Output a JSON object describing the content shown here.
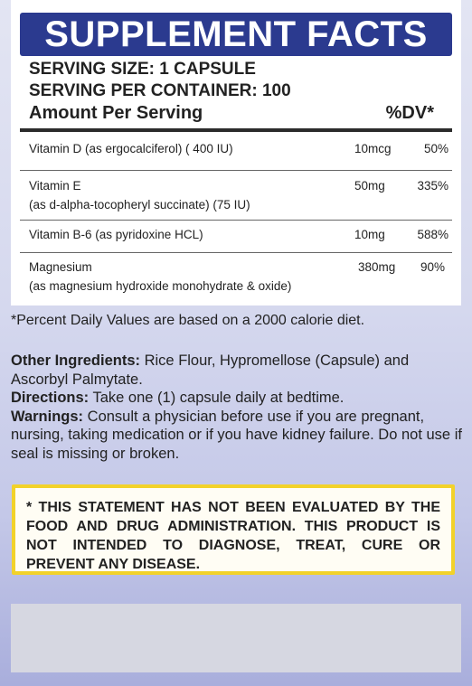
{
  "header": {
    "title": "SUPPLEMENT FACTS"
  },
  "serving": {
    "size": "SERVING SIZE: 1 CAPSULE",
    "per_container": "SERVING PER CONTAINER: 100"
  },
  "table": {
    "amount_label": "Amount Per Serving",
    "dv_label": "%DV*",
    "rows": [
      {
        "name": "Vitamin D (as ergocalciferol) ( 400 IU)",
        "sub": "",
        "amount": "10mcg",
        "dv": "50%"
      },
      {
        "name": "Vitamin E",
        "sub": "(as d-alpha-tocopheryl succinate) (75 IU)",
        "amount": "50mg",
        "dv": "335%"
      },
      {
        "name": "Vitamin B-6 (as pyridoxine HCL)",
        "sub": "",
        "amount": "10mg",
        "dv": "588%"
      },
      {
        "name": "Magnesium",
        "sub": "(as magnesium hydroxide monohydrate & oxide)",
        "amount": "380mg",
        "dv": "90%"
      }
    ]
  },
  "footnote": "*Percent Daily Values are based on a 2000 calorie diet.",
  "other_ingredients": {
    "label": "Other Ingredients:",
    "text": " Rice Flour,  Hypromellose (Capsule) and Ascorbyl Palmytate."
  },
  "directions": {
    "label": "Directions:",
    "text": " Take one (1) capsule daily at bedtime."
  },
  "warnings": {
    "label": "Warnings:",
    "text": " Consult a physician before use if you are pregnant, nursing, taking medication or if you have kidney failure. Do not use if seal is missing or broken."
  },
  "statement": "* THIS STATEMENT HAS NOT BEEN EVALUATED BY THE FOOD AND DRUG ADMINISTRATION. THIS PRODUCT IS NOT INTENDED TO DIAGNOSE, TREAT, CURE OR PREVENT ANY DISEASE.",
  "colors": {
    "title_bar": "#2b3a8f",
    "statement_border": "#f2d22a",
    "background": "#d5d8ee"
  }
}
